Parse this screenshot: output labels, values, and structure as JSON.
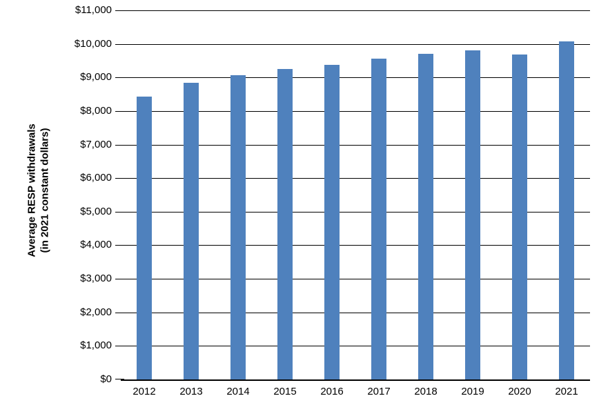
{
  "chart_data": {
    "type": "bar",
    "categories": [
      "2012",
      "2013",
      "2014",
      "2015",
      "2016",
      "2017",
      "2018",
      "2019",
      "2020",
      "2021"
    ],
    "values": [
      8420,
      8840,
      9070,
      9250,
      9370,
      9560,
      9700,
      9810,
      9690,
      10080
    ],
    "title": "",
    "xlabel": "",
    "ylabel_line1": "Average RESP withdrawals",
    "ylabel_line2": "(in 2021 constant dollars)",
    "ylim": [
      0,
      11000
    ],
    "ytick_step": 1000,
    "ytick_labels": [
      "$0",
      "$1,000",
      "$2,000",
      "$3,000",
      "$4,000",
      "$5,000",
      "$6,000",
      "$7,000",
      "$8,000",
      "$9,000",
      "$10,000",
      "$11,000"
    ],
    "grid": true,
    "legend": "none",
    "bar_color": "#4F81BD",
    "gridline_color": "#000000",
    "axis_color": "#000000",
    "text_color": "#000000",
    "background_color": "#ffffff"
  }
}
